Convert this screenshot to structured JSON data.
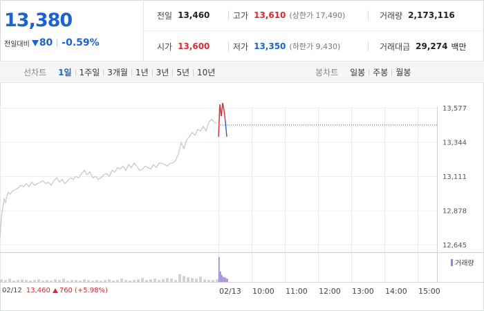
{
  "quote": {
    "price": "13,380",
    "change_label": "전일대비",
    "change": "80",
    "change_rate": "-0.59%",
    "color_down": "#1a63d6",
    "color_up": "#e1262c"
  },
  "stats": {
    "prev_close": {
      "label": "전일",
      "value": "13,460"
    },
    "open": {
      "label": "시가",
      "value": "13,600"
    },
    "high": {
      "label": "고가",
      "value": "13,610",
      "limit": "(상한가 17,490)"
    },
    "low": {
      "label": "저가",
      "value": "13,350",
      "limit": "(하한가 9,430)"
    },
    "volume": {
      "label": "거래량",
      "value": "2,173,116"
    },
    "amount": {
      "label": "거래대금",
      "value": "29,274",
      "unit": "백만"
    }
  },
  "toolbar": {
    "line_title": "선차트",
    "line_periods": [
      "1일",
      "1주일",
      "3개월",
      "1년",
      "3년",
      "5년",
      "10년"
    ],
    "active_period": "1일",
    "candle_title": "봉차트",
    "candle_periods": [
      "일봉",
      "주봉",
      "월봉"
    ]
  },
  "volume_legend": "거래량",
  "prev_day": {
    "date": "02/12",
    "price": "13,460",
    "change": "760",
    "rate": "(+5.98%)"
  },
  "chart_data": {
    "type": "line",
    "y_ticks": [
      "13,577",
      "13,344",
      "13,111",
      "12,878",
      "12,645"
    ],
    "ylim": [
      12645,
      13577
    ],
    "x_ticks": [
      "02/12",
      "02/13",
      "10:00",
      "11:00",
      "12:00",
      "13:00",
      "14:00",
      "15:00"
    ],
    "reference_price": 13460,
    "series": [
      {
        "x": [
          0,
          2,
          4,
          6,
          8,
          10,
          12,
          15,
          18,
          22,
          26,
          30,
          34,
          38,
          42,
          46,
          50,
          54,
          58,
          62,
          66,
          70,
          74,
          78,
          82,
          86,
          90,
          94,
          98,
          102,
          106,
          110,
          114,
          118,
          122,
          126,
          130,
          134,
          138,
          142,
          146,
          150,
          154,
          158,
          162,
          166,
          170,
          174,
          178,
          182,
          186,
          190,
          194,
          198,
          202,
          206,
          210,
          214,
          218,
          222,
          226,
          230,
          234,
          238,
          242,
          246,
          250,
          254,
          258,
          262,
          266,
          270,
          274,
          278,
          282,
          286,
          290,
          294,
          298,
          302,
          306,
          310,
          313
        ],
        "values": [
          12690,
          12830,
          12900,
          12960,
          12930,
          12980,
          13000,
          12990,
          13010,
          13020,
          13030,
          13050,
          13040,
          13060,
          13040,
          13070,
          13050,
          13060,
          13070,
          13080,
          13060,
          13070,
          13050,
          13080,
          13100,
          13070,
          13090,
          13060,
          13080,
          13100,
          13090,
          13110,
          13100,
          13130,
          13150,
          13120,
          13140,
          13100,
          13110,
          13090,
          13100,
          13120,
          13130,
          13110,
          13150,
          13140,
          13170,
          13160,
          13180,
          13150,
          13190,
          13170,
          13200,
          13180,
          13150,
          13160,
          13180,
          13170,
          13160,
          13190,
          13170,
          13200,
          13200,
          13190,
          13180,
          13200,
          13200,
          13220,
          13260,
          13340,
          13300,
          13360,
          13380,
          13410,
          13390,
          13430,
          13420,
          13450,
          13420,
          13480,
          13500,
          13480,
          13470
        ]
      },
      {
        "x": [
          316,
          318,
          320,
          322,
          324,
          326,
          328
        ],
        "values": [
          13380,
          13600,
          13520,
          13610,
          13560,
          13480,
          13380
        ]
      }
    ],
    "volume": {
      "x": [
        0,
        6,
        12,
        18,
        24,
        30,
        36,
        42,
        48,
        54,
        60,
        66,
        72,
        78,
        84,
        90,
        96,
        102,
        108,
        114,
        120,
        126,
        132,
        138,
        144,
        150,
        156,
        162,
        168,
        174,
        180,
        186,
        192,
        198,
        204,
        210,
        216,
        222,
        228,
        234,
        240,
        246,
        252,
        258,
        264,
        270,
        276,
        282,
        288,
        294,
        300,
        306,
        312,
        316,
        318,
        320,
        322,
        324,
        326,
        328
      ],
      "values": [
        4,
        3,
        5,
        2,
        3,
        4,
        3,
        2,
        3,
        4,
        2,
        3,
        2,
        4,
        3,
        5,
        2,
        3,
        3,
        2,
        4,
        3,
        2,
        3,
        2,
        3,
        4,
        2,
        3,
        5,
        3,
        2,
        3,
        4,
        6,
        3,
        4,
        5,
        3,
        4,
        6,
        5,
        3,
        12,
        9,
        7,
        6,
        5,
        8,
        4,
        3,
        3,
        4,
        38,
        16,
        11,
        8,
        7,
        6,
        5
      ]
    }
  }
}
